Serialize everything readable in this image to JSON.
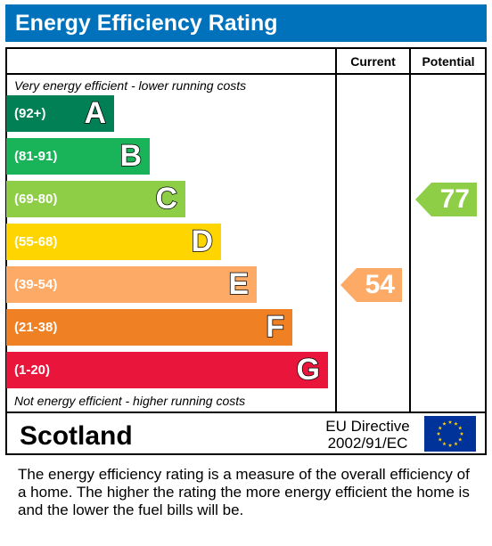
{
  "title": "Energy Efficiency Rating",
  "columns": {
    "current": "Current",
    "potential": "Potential"
  },
  "top_note": "Very energy efficient - lower running costs",
  "bottom_note": "Not energy efficient - higher running costs",
  "region": "Scotland",
  "directive_line1": "EU Directive",
  "directive_line2": "2002/91/EC",
  "description": "The energy efficiency rating is a measure of the overall efficiency of a home.  The higher the rating the more energy efficient the home is and the lower the fuel bills will be.",
  "chart_data": {
    "type": "bar",
    "categories": [
      "A",
      "B",
      "C",
      "D",
      "E",
      "F",
      "G"
    ],
    "bands": [
      {
        "letter": "A",
        "range": "(92+)",
        "color": "#008054"
      },
      {
        "letter": "B",
        "range": "(81-91)",
        "color": "#19b459"
      },
      {
        "letter": "C",
        "range": "(69-80)",
        "color": "#8dce46"
      },
      {
        "letter": "D",
        "range": "(55-68)",
        "color": "#ffd500"
      },
      {
        "letter": "E",
        "range": "(39-54)",
        "color": "#fcaa65"
      },
      {
        "letter": "F",
        "range": "(21-38)",
        "color": "#ef8023"
      },
      {
        "letter": "G",
        "range": "(1-20)",
        "color": "#e9153b"
      }
    ],
    "current": {
      "value": 54,
      "label": "54",
      "band": "E",
      "color": "#fcaa65"
    },
    "potential": {
      "value": 77,
      "label": "77",
      "band": "C",
      "color": "#8dce46"
    }
  }
}
